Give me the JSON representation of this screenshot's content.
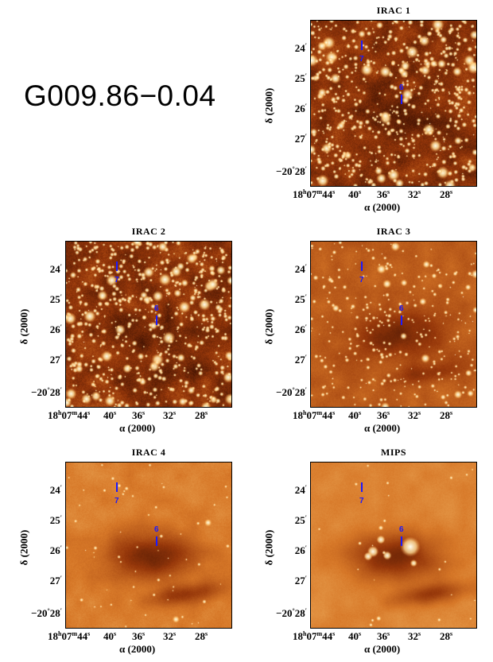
{
  "figure_title": "G009.86−0.04",
  "axis": {
    "ylabel": "δ (2000)",
    "xlabel": "α (2000)",
    "yticks": [
      "24′",
      "25′",
      "26′",
      "27′",
      "−20°28′"
    ],
    "xticks": [
      "18h07m44s",
      "40s",
      "36s",
      "32s",
      "28s"
    ]
  },
  "sources": [
    {
      "label": "7"
    },
    {
      "label": "6"
    }
  ],
  "panels": [
    {
      "id": "irac1",
      "title": "IRAC 1",
      "style": "stars-dense"
    },
    {
      "id": "irac2",
      "title": "IRAC 2",
      "style": "stars-dense"
    },
    {
      "id": "irac3",
      "title": "IRAC 3",
      "style": "mixed"
    },
    {
      "id": "irac4",
      "title": "IRAC 4",
      "style": "diffuse"
    },
    {
      "id": "mips",
      "title": "MIPS",
      "style": "diffuse-mips"
    }
  ],
  "colors": {
    "source_marker": "#1a1aff"
  }
}
